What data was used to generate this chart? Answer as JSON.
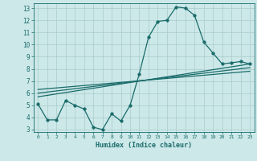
{
  "title": "",
  "xlabel": "Humidex (Indice chaleur)",
  "background_color": "#cce8e8",
  "grid_color": "#aacccc",
  "line_color": "#1a6b6b",
  "xlim": [
    -0.5,
    23.5
  ],
  "ylim": [
    2.8,
    13.4
  ],
  "xticks": [
    0,
    1,
    2,
    3,
    4,
    5,
    6,
    7,
    8,
    9,
    10,
    11,
    12,
    13,
    14,
    15,
    16,
    17,
    18,
    19,
    20,
    21,
    22,
    23
  ],
  "yticks": [
    3,
    4,
    5,
    6,
    7,
    8,
    9,
    10,
    11,
    12,
    13
  ],
  "line1_x": [
    0,
    1,
    2,
    3,
    4,
    5,
    6,
    7,
    8,
    9,
    10,
    11,
    12,
    13,
    14,
    15,
    16,
    17,
    18,
    19,
    20,
    21,
    22,
    23
  ],
  "line1_y": [
    5.1,
    3.8,
    3.8,
    5.4,
    5.0,
    4.7,
    3.2,
    3.0,
    4.3,
    3.7,
    5.0,
    7.6,
    10.6,
    11.9,
    12.0,
    13.1,
    13.0,
    12.4,
    10.2,
    9.3,
    8.4,
    8.5,
    8.6,
    8.4
  ],
  "line2_x": [
    0,
    23
  ],
  "line2_y": [
    5.7,
    8.4
  ],
  "line3_x": [
    0,
    23
  ],
  "line3_y": [
    6.0,
    8.1
  ],
  "line4_x": [
    0,
    23
  ],
  "line4_y": [
    6.3,
    7.8
  ],
  "markersize": 2.5,
  "linewidth": 0.9
}
